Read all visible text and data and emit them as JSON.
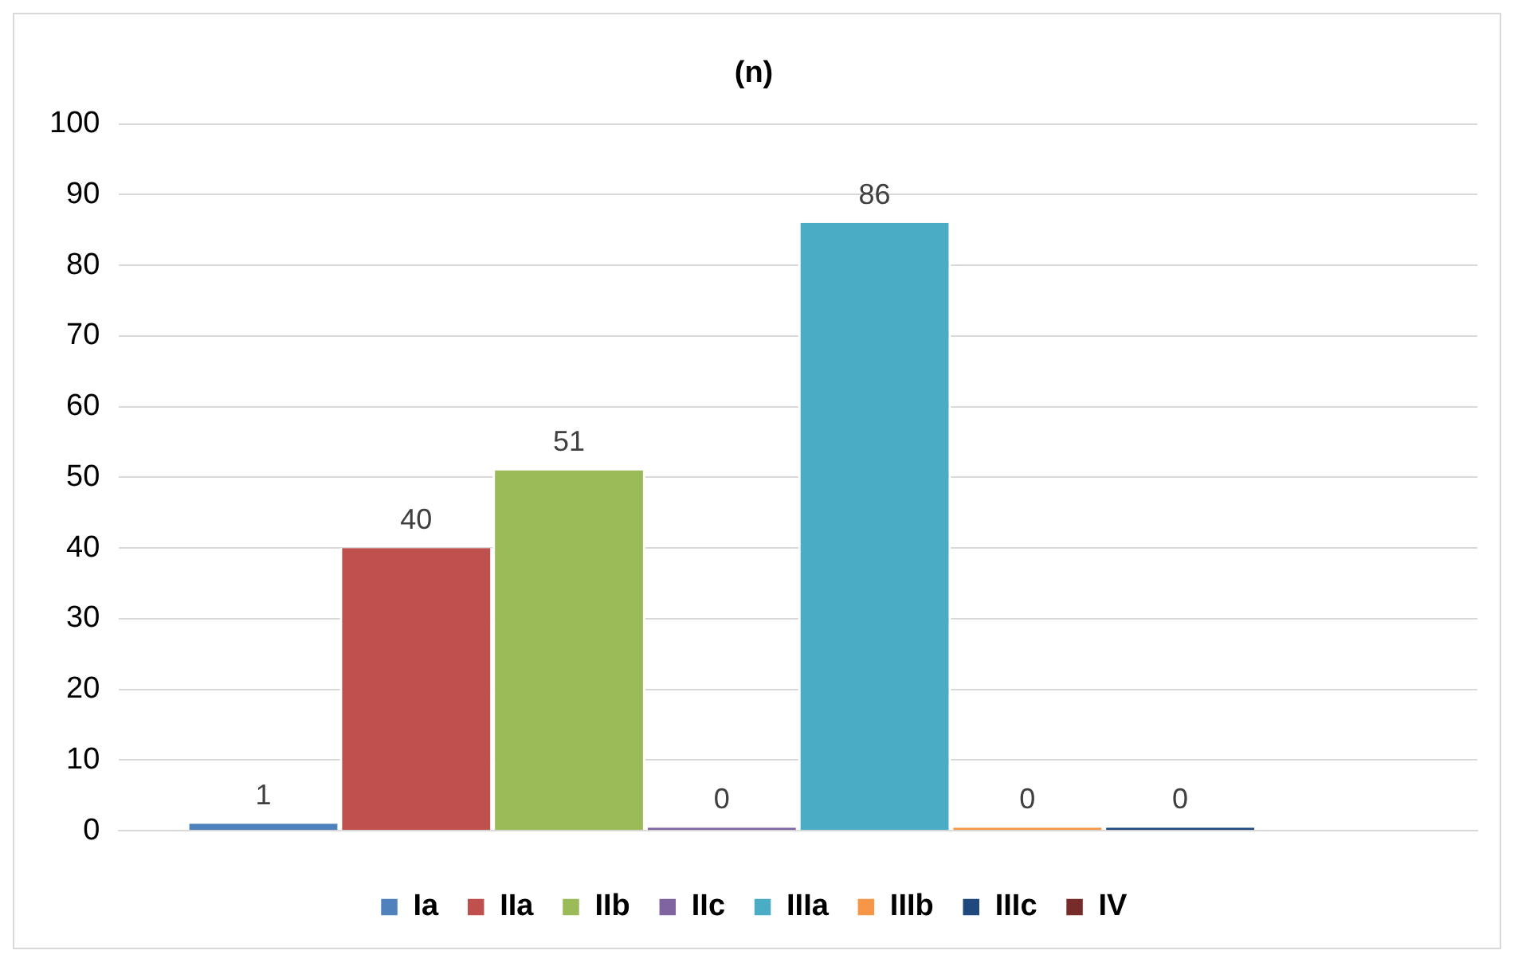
{
  "chart_data": {
    "type": "bar",
    "title": "(n)",
    "categories": [
      null
    ],
    "series": [
      {
        "name": "Ia",
        "color": "#4f81bd",
        "values": [
          1
        ]
      },
      {
        "name": "IIa",
        "color": "#c0504d",
        "values": [
          40
        ]
      },
      {
        "name": "IIb",
        "color": "#9bbb59",
        "values": [
          51
        ]
      },
      {
        "name": "IIc",
        "color": "#8064a2",
        "values": [
          0
        ]
      },
      {
        "name": "IIIa",
        "color": "#4bacc6",
        "values": [
          86
        ]
      },
      {
        "name": "IIIb",
        "color": "#f79646",
        "values": [
          0
        ]
      },
      {
        "name": "IIIc",
        "color": "#1f497d",
        "values": [
          0
        ]
      },
      {
        "name": "IV",
        "color": "#772c2a",
        "values": [
          null
        ]
      }
    ],
    "ylim": [
      0,
      100
    ],
    "yticks": [
      0,
      10,
      20,
      30,
      40,
      50,
      60,
      70,
      80,
      90,
      100
    ],
    "grid": "y",
    "legend": "bottom",
    "data_labels": true
  }
}
